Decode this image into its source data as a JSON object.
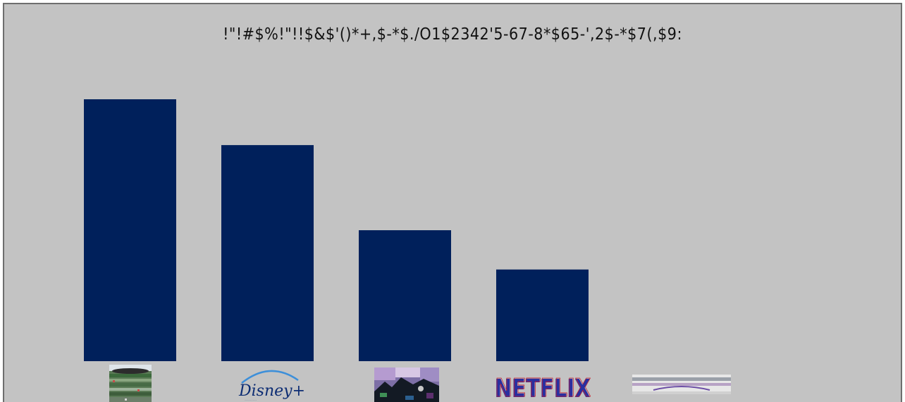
{
  "chart_data": {
    "type": "bar",
    "title": "!\"!#$%!\"!!$&$'()*+,$-*$./O1$2342'5-67-8*$65-',2$-*$7(,$9:",
    "categories": [
      "stadium-photo-logo",
      "Disney+",
      "mosaic-photo-logo",
      "NETFLIX",
      "banner-photo-logo"
    ],
    "values": [
      100,
      82.5,
      50,
      35,
      0
    ],
    "ylim": [
      0,
      100
    ],
    "bar_color": "#00205b",
    "background_color": "#c3c3c3",
    "grid": false,
    "legend": "none"
  },
  "logos": {
    "disney_text": "Disney+",
    "netflix_text": "NETFLIX"
  }
}
